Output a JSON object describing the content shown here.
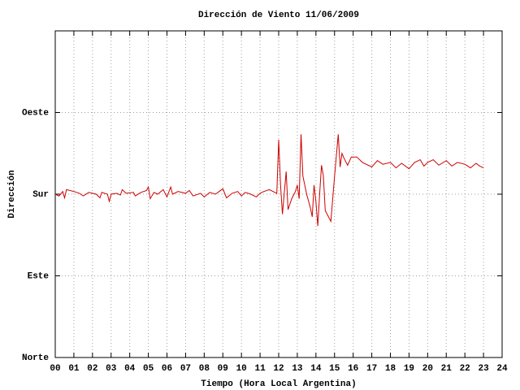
{
  "chart_data": {
    "type": "line",
    "title": "Dirección de Viento 11/06/2009",
    "x_label": "Tiempo (Hora Local Argentina)",
    "y_label": "Dirección",
    "xlim": [
      0,
      24
    ],
    "xticks": [
      {
        "value": 0,
        "label": "00"
      },
      {
        "value": 1,
        "label": "01"
      },
      {
        "value": 2,
        "label": "02"
      },
      {
        "value": 3,
        "label": "03"
      },
      {
        "value": 4,
        "label": "04"
      },
      {
        "value": 5,
        "label": "05"
      },
      {
        "value": 6,
        "label": "06"
      },
      {
        "value": 7,
        "label": "07"
      },
      {
        "value": 8,
        "label": "08"
      },
      {
        "value": 9,
        "label": "09"
      },
      10,
      11,
      12,
      13,
      14,
      15,
      16,
      17,
      18,
      19,
      20,
      21,
      22,
      23,
      24
    ],
    "ylim": [
      0,
      360
    ],
    "yticks": [
      {
        "value": 0,
        "label": "Norte"
      },
      {
        "value": 90,
        "label": "Este"
      },
      {
        "value": 180,
        "label": "Sur"
      },
      {
        "value": 270,
        "label": "Oeste"
      }
    ],
    "grid": true,
    "color": "#cc0000",
    "x": [
      0,
      0.2,
      0.4,
      0.5,
      0.6,
      1.0,
      1.3,
      1.5,
      1.8,
      2.2,
      2.4,
      2.5,
      2.8,
      2.9,
      3.0,
      3.3,
      3.5,
      3.6,
      3.8,
      4.2,
      4.3,
      4.6,
      4.9,
      5.0,
      5.1,
      5.3,
      5.5,
      5.8,
      6.0,
      6.2,
      6.3,
      6.6,
      7.0,
      7.2,
      7.4,
      7.8,
      8.0,
      8.3,
      8.6,
      8.8,
      9.0,
      9.2,
      9.5,
      9.8,
      10.0,
      10.2,
      10.5,
      10.8,
      11.0,
      11.2,
      11.5,
      11.9,
      12.0,
      12.1,
      12.2,
      12.4,
      12.5,
      12.7,
      12.9,
      13.0,
      13.1,
      13.2,
      13.3,
      13.5,
      13.7,
      13.8,
      13.9,
      14.0,
      14.1,
      14.2,
      14.3,
      14.4,
      14.5,
      14.8,
      15.0,
      15.2,
      15.3,
      15.4,
      15.5,
      15.7,
      15.9,
      16.2,
      16.5,
      17.0,
      17.3,
      17.6,
      18.0,
      18.3,
      18.6,
      19.0,
      19.3,
      19.6,
      19.8,
      20.0,
      20.3,
      20.6,
      21.0,
      21.3,
      21.6,
      22.0,
      22.3,
      22.6,
      22.8,
      23.0
    ],
    "values": [
      180,
      178,
      183,
      176,
      185,
      183,
      181,
      178,
      182,
      180,
      176,
      182,
      180,
      172,
      180,
      181,
      179,
      185,
      181,
      182,
      178,
      182,
      184,
      188,
      175,
      182,
      180,
      185,
      177,
      188,
      180,
      183,
      181,
      184,
      178,
      181,
      177,
      182,
      180,
      183,
      186,
      176,
      181,
      183,
      178,
      182,
      180,
      177,
      181,
      183,
      185,
      181,
      240,
      190,
      158,
      205,
      163,
      175,
      183,
      190,
      175,
      246,
      200,
      180,
      165,
      155,
      190,
      172,
      145,
      180,
      212,
      200,
      162,
      150,
      200,
      246,
      210,
      225,
      220,
      212,
      221,
      221,
      215,
      210,
      217,
      213,
      215,
      209,
      214,
      208,
      215,
      218,
      211,
      215,
      218,
      212,
      217,
      211,
      215,
      213,
      209,
      214,
      211,
      209
    ]
  }
}
